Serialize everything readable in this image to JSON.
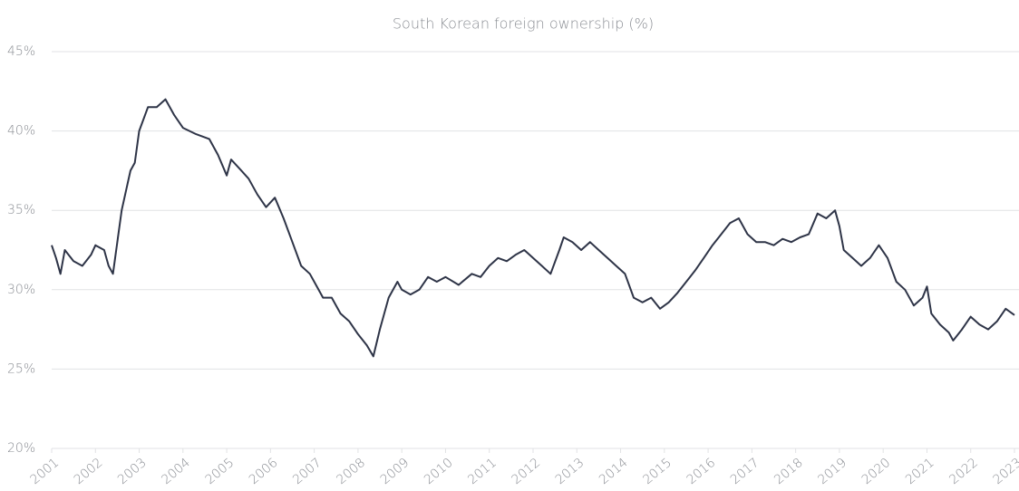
{
  "chart_data": {
    "type": "line",
    "title": "South Korean foreign ownership (%)",
    "x": [
      2001.0,
      2001.1,
      2001.2,
      2001.3,
      2001.5,
      2001.7,
      2001.9,
      2002.0,
      2002.2,
      2002.3,
      2002.4,
      2002.5,
      2002.6,
      2002.8,
      2002.9,
      2003.0,
      2003.2,
      2003.4,
      2003.6,
      2003.8,
      2004.0,
      2004.3,
      2004.6,
      2004.8,
      2005.0,
      2005.1,
      2005.3,
      2005.5,
      2005.7,
      2005.9,
      2006.1,
      2006.3,
      2006.5,
      2006.7,
      2006.9,
      2007.0,
      2007.2,
      2007.4,
      2007.6,
      2007.8,
      2008.0,
      2008.2,
      2008.35,
      2008.5,
      2008.7,
      2008.9,
      2009.0,
      2009.2,
      2009.4,
      2009.6,
      2009.8,
      2010.0,
      2010.3,
      2010.6,
      2010.8,
      2011.0,
      2011.2,
      2011.4,
      2011.6,
      2011.8,
      2012.0,
      2012.2,
      2012.4,
      2012.6,
      2012.7,
      2012.9,
      2013.1,
      2013.3,
      2013.5,
      2013.7,
      2013.9,
      2014.1,
      2014.3,
      2014.5,
      2014.7,
      2014.9,
      2015.1,
      2015.3,
      2015.5,
      2015.7,
      2015.9,
      2016.1,
      2016.3,
      2016.5,
      2016.7,
      2016.9,
      2017.1,
      2017.3,
      2017.5,
      2017.7,
      2017.9,
      2018.1,
      2018.3,
      2018.5,
      2018.7,
      2018.9,
      2019.0,
      2019.1,
      2019.3,
      2019.5,
      2019.7,
      2019.9,
      2020.1,
      2020.3,
      2020.5,
      2020.7,
      2020.9,
      2021.0,
      2021.1,
      2021.3,
      2021.5,
      2021.6,
      2021.8,
      2022.0,
      2022.2,
      2022.4,
      2022.6,
      2022.8,
      2023.0
    ],
    "values": [
      32.8,
      32.0,
      31.0,
      32.5,
      31.8,
      31.5,
      32.2,
      32.8,
      32.5,
      31.5,
      31.0,
      33.0,
      35.0,
      37.5,
      38.0,
      40.0,
      41.5,
      41.5,
      42.0,
      41.0,
      40.2,
      39.8,
      39.5,
      38.5,
      37.2,
      38.2,
      37.6,
      37.0,
      36.0,
      35.2,
      35.8,
      34.5,
      33.0,
      31.5,
      31.0,
      30.5,
      29.5,
      29.5,
      28.5,
      28.0,
      27.2,
      26.5,
      25.8,
      27.5,
      29.5,
      30.5,
      30.0,
      29.7,
      30.0,
      30.8,
      30.5,
      30.8,
      30.3,
      31.0,
      30.8,
      31.5,
      32.0,
      31.8,
      32.2,
      32.5,
      32.0,
      31.5,
      31.0,
      32.5,
      33.3,
      33.0,
      32.5,
      33.0,
      32.5,
      32.0,
      31.5,
      31.0,
      29.5,
      29.2,
      29.5,
      28.8,
      29.2,
      29.8,
      30.5,
      31.2,
      32.0,
      32.8,
      33.5,
      34.2,
      34.5,
      33.5,
      33.0,
      33.0,
      32.8,
      33.2,
      33.0,
      33.3,
      33.5,
      34.8,
      34.5,
      35.0,
      34.0,
      32.5,
      32.0,
      31.5,
      32.0,
      32.8,
      32.0,
      30.5,
      30.0,
      29.0,
      29.5,
      30.2,
      28.5,
      27.8,
      27.3,
      26.8,
      27.5,
      28.3,
      27.8,
      27.5,
      28.0,
      28.8,
      28.4
    ],
    "color": "#2e3447",
    "xlim": [
      2001,
      2023
    ],
    "xticks": [
      2001,
      2002,
      2003,
      2004,
      2005,
      2006,
      2007,
      2008,
      2009,
      2010,
      2011,
      2012,
      2013,
      2014,
      2015,
      2016,
      2017,
      2018,
      2019,
      2020,
      2021,
      2022,
      2023
    ],
    "ylim": [
      20,
      45
    ],
    "yticks": [
      {
        "value": 20,
        "label": "20%"
      },
      {
        "value": 25,
        "label": "25%"
      },
      {
        "value": 30,
        "label": "30%"
      },
      {
        "value": 35,
        "label": "35%"
      },
      {
        "value": 40,
        "label": "40%"
      },
      {
        "value": 45,
        "label": "45%"
      }
    ],
    "grid": true
  }
}
